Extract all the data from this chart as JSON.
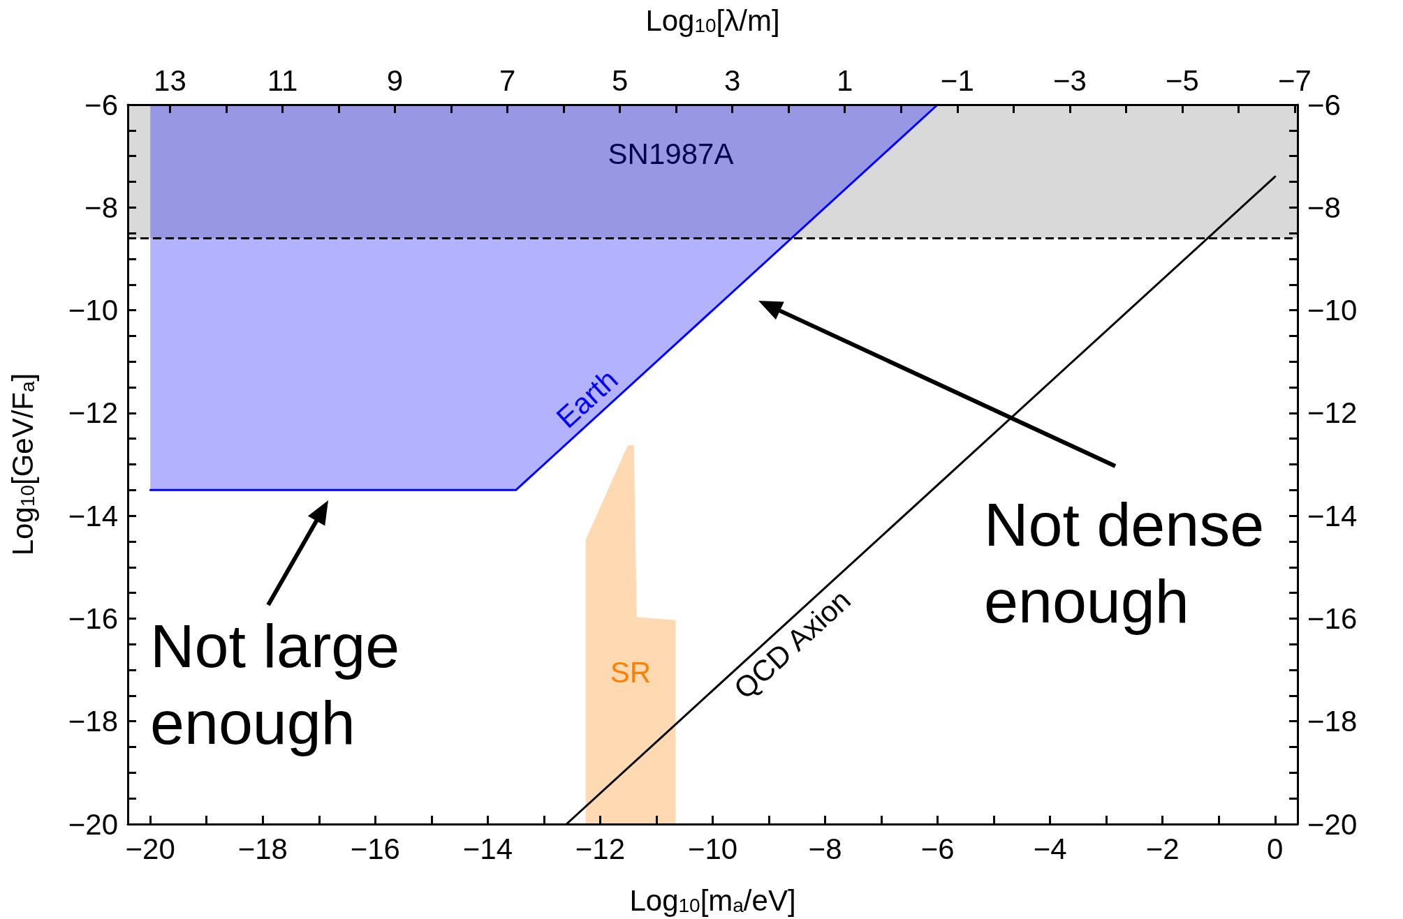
{
  "chart_data": {
    "type": "area",
    "xlabel": "Log$_{10}$[m$_{a}$/eV]",
    "ylabel": "Log$_{10}$[GeV/F$_{a}$]",
    "x2label": "Log$_{10}$[λ/m]",
    "xlim": [
      -20.4,
      0.4
    ],
    "x2lim": [
      13.75,
      -7.05
    ],
    "ylim": [
      -20,
      -6
    ],
    "y2lim": [
      -20,
      -6
    ],
    "xticks": [
      -20,
      {
        "value": -19,
        "label": null
      },
      -18,
      {
        "value": -17,
        "label": null
      },
      -16,
      {
        "value": -15,
        "label": null
      },
      -14,
      {
        "value": -13,
        "label": null
      },
      -12,
      {
        "value": -11,
        "label": null
      },
      -10,
      {
        "value": -9,
        "label": null
      },
      -8,
      {
        "value": -7,
        "label": null
      },
      -6,
      {
        "value": -5,
        "label": null
      },
      -4,
      {
        "value": -3,
        "label": null
      },
      -2,
      {
        "value": -1,
        "label": null
      },
      0
    ],
    "x2ticks": [
      13,
      {
        "value": 12,
        "label": null
      },
      11,
      {
        "value": 10,
        "label": null
      },
      9,
      {
        "value": 8,
        "label": null
      },
      7,
      {
        "value": 6,
        "label": null
      },
      5,
      {
        "value": 4,
        "label": null
      },
      3,
      {
        "value": 2,
        "label": null
      },
      1,
      {
        "value": 0,
        "label": null
      },
      -1,
      {
        "value": -2,
        "label": null
      },
      -3,
      {
        "value": -4,
        "label": null
      },
      -5,
      {
        "value": -6,
        "label": null
      },
      -7
    ],
    "yticks": [
      -20,
      {
        "value": -19.5,
        "label": null
      },
      {
        "value": -19,
        "label": null
      },
      {
        "value": -18.5,
        "label": null
      },
      -18,
      {
        "value": -17.5,
        "label": null
      },
      {
        "value": -17,
        "label": null
      },
      {
        "value": -16.5,
        "label": null
      },
      -16,
      {
        "value": -15.5,
        "label": null
      },
      {
        "value": -15,
        "label": null
      },
      {
        "value": -14.5,
        "label": null
      },
      -14,
      {
        "value": -13.5,
        "label": null
      },
      {
        "value": -13,
        "label": null
      },
      {
        "value": -12.5,
        "label": null
      },
      -12,
      {
        "value": -11.5,
        "label": null
      },
      {
        "value": -11,
        "label": null
      },
      {
        "value": -10.5,
        "label": null
      },
      -10,
      {
        "value": -9.5,
        "label": null
      },
      {
        "value": -9,
        "label": null
      },
      {
        "value": -8.5,
        "label": null
      },
      -8,
      {
        "value": -7.5,
        "label": null
      },
      {
        "value": -7,
        "label": null
      },
      {
        "value": -6.5,
        "label": null
      },
      -6
    ],
    "y2ticks": [
      -20,
      {
        "value": -19.5,
        "label": null
      },
      {
        "value": -19,
        "label": null
      },
      {
        "value": -18.5,
        "label": null
      },
      -18,
      {
        "value": -17.5,
        "label": null
      },
      {
        "value": -17,
        "label": null
      },
      {
        "value": -16.5,
        "label": null
      },
      -16,
      {
        "value": -15.5,
        "label": null
      },
      {
        "value": -15,
        "label": null
      },
      {
        "value": -14.5,
        "label": null
      },
      -14,
      {
        "value": -13.5,
        "label": null
      },
      {
        "value": -13,
        "label": null
      },
      {
        "value": -12.5,
        "label": null
      },
      -12,
      {
        "value": -11.5,
        "label": null
      },
      {
        "value": -11,
        "label": null
      },
      {
        "value": -10.5,
        "label": null
      },
      -10,
      {
        "value": -9.5,
        "label": null
      },
      {
        "value": -9,
        "label": null
      },
      {
        "value": -8.5,
        "label": null
      },
      -8,
      {
        "value": -7.5,
        "label": null
      },
      {
        "value": -7,
        "label": null
      },
      {
        "value": -6.5,
        "label": null
      },
      -6
    ],
    "series": [
      {
        "name": "SR",
        "color": "#ff8000",
        "line_style": "none",
        "x": [
          -12.26,
          -12.26,
          -11.51,
          -11.4,
          -11.35,
          -10.66,
          -10.66
        ],
        "values": [
          -20,
          -14.47,
          -12.63,
          -12.63,
          -15.97,
          -16.03,
          -20
        ]
      },
      {
        "name": "Earth",
        "color": "#0000ff",
        "line_style": "solid",
        "x": [
          -20,
          -13.5,
          -6
        ],
        "values": [
          -13.5,
          -13.5,
          -6
        ]
      },
      {
        "name": "QCD Axion",
        "type": "line",
        "color": "#000000",
        "line_style": "solid",
        "x": [
          -12.6,
          0
        ],
        "values": [
          -20,
          -7.4
        ]
      }
    ],
    "bands": [
      {
        "axis": "y",
        "from": -8.6,
        "to": -6,
        "label": "SN1987A",
        "color": "#d9d9d9"
      }
    ],
    "ref_lines": [
      {
        "axis": "y",
        "value": -8.6,
        "color": "#000000",
        "line_style": "dashed"
      }
    ],
    "annotations": [
      "Not large enough",
      "Not dense enough"
    ],
    "grid": false,
    "legend": false,
    "marker": "none"
  }
}
